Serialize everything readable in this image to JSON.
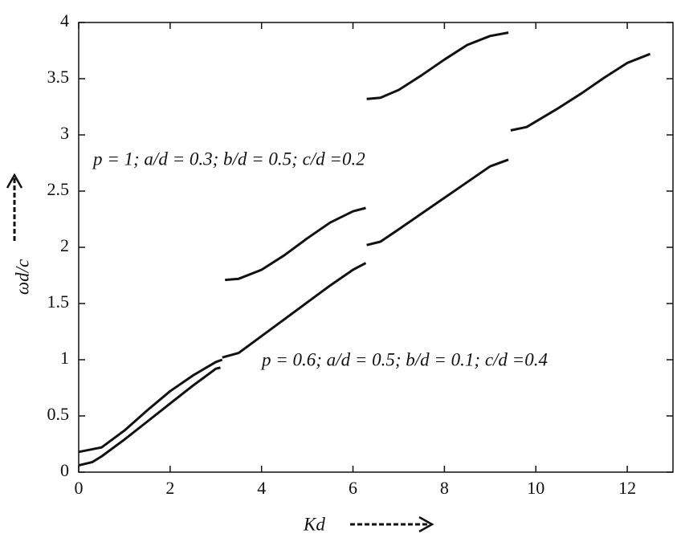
{
  "chart_data": {
    "type": "line",
    "xlabel": "Kd",
    "ylabel": "ωd/c",
    "annotations": [
      "p = 1; a/d = 0.3; b/d = 0.5; c/d =0.2",
      "p = 0.6; a/d = 0.5; b/d = 0.1; c/d =0.4"
    ],
    "xlim": [
      0,
      13
    ],
    "ylim": [
      0,
      4
    ],
    "xticks": [
      0,
      2,
      4,
      6,
      8,
      10,
      12
    ],
    "yticks": [
      0,
      0.5,
      1,
      1.5,
      2,
      2.5,
      3,
      3.5,
      4
    ],
    "series": [
      {
        "color": "#111111",
        "x": [
          0,
          0.5,
          1,
          1.5,
          2,
          2.5,
          3,
          3.14,
          3.16,
          3.2,
          3.5,
          4,
          4.5,
          5,
          5.5,
          6,
          6.28,
          6.29,
          6.3,
          6.6,
          7,
          7.5,
          8,
          8.5,
          9,
          9.4
        ],
        "values": [
          0.18,
          0.22,
          0.37,
          0.55,
          0.72,
          0.86,
          0.98,
          1.0,
          null,
          1.71,
          1.72,
          1.8,
          1.93,
          2.08,
          2.22,
          2.32,
          2.35,
          null,
          3.32,
          3.33,
          3.4,
          3.53,
          3.67,
          3.8,
          3.88,
          3.91
        ]
      },
      {
        "color": "#111111",
        "x": [
          0,
          0.3,
          0.5,
          1,
          1.5,
          2,
          2.5,
          3,
          3.1,
          3.12,
          3.14,
          3.5,
          4,
          4.5,
          5,
          5.5,
          6,
          6.28,
          6.29,
          6.3,
          6.6,
          7,
          7.5,
          8,
          8.5,
          9,
          9.4,
          9.42,
          9.45,
          9.8,
          10.5,
          11,
          11.5,
          12,
          12.5
        ],
        "values": [
          0.06,
          0.09,
          0.14,
          0.29,
          0.45,
          0.61,
          0.77,
          0.92,
          0.93,
          null,
          1.02,
          1.06,
          1.21,
          1.36,
          1.51,
          1.66,
          1.8,
          1.86,
          null,
          2.02,
          2.05,
          2.16,
          2.3,
          2.44,
          2.58,
          2.72,
          2.78,
          null,
          3.04,
          3.07,
          3.24,
          3.37,
          3.51,
          3.64,
          3.72
        ]
      }
    ]
  }
}
